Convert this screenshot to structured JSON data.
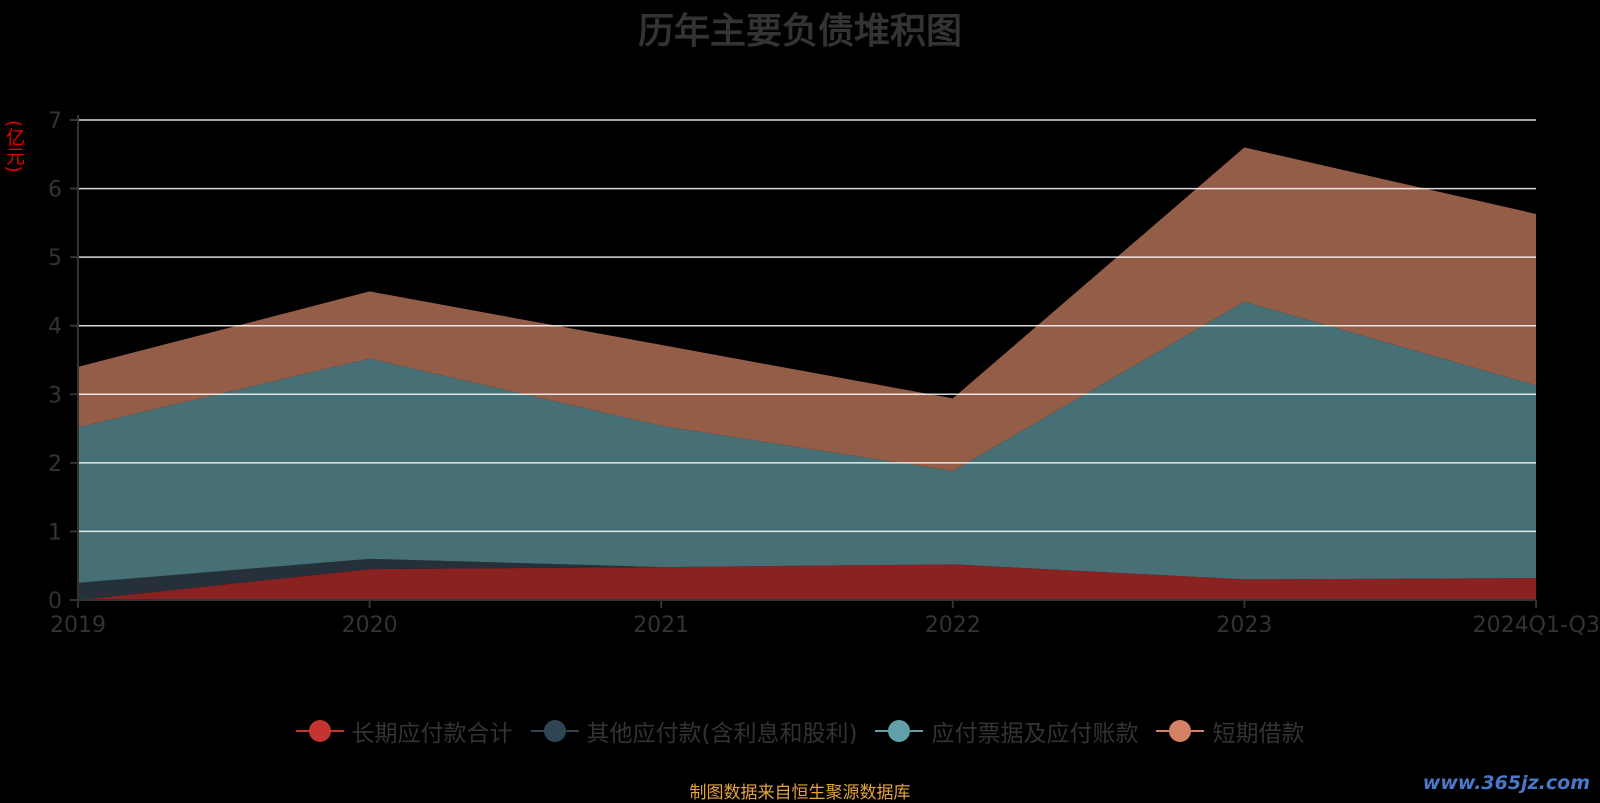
{
  "chart_data": {
    "type": "area",
    "stacked": true,
    "title": "历年主要负债堆积图",
    "unit": "(亿元)",
    "categories": [
      "2019",
      "2020",
      "2021",
      "2022",
      "2023",
      "2024Q1-Q3"
    ],
    "ylim": [
      0,
      7
    ],
    "yticks": [
      "0",
      "1",
      "2",
      "3",
      "4",
      "5",
      "6",
      "7"
    ],
    "grid": true,
    "legend_position": "bottom",
    "series": [
      {
        "name": "长期应付款合计",
        "color": "#c23531",
        "fill": "#8b2222",
        "values": [
          0.0,
          0.45,
          0.48,
          0.52,
          0.3,
          0.32
        ]
      },
      {
        "name": "其他应付款(含利息和股利)",
        "color": "#2f4554",
        "fill": "#25303a",
        "values": [
          0.25,
          0.15,
          0.0,
          0.0,
          0.0,
          0.0
        ]
      },
      {
        "name": "应付票据及应付账款",
        "color": "#61a0a8",
        "fill": "#467076",
        "values": [
          2.27,
          2.92,
          2.06,
          1.36,
          4.05,
          2.81
        ]
      },
      {
        "name": "短期借款",
        "color": "#d48265",
        "fill": "#945d48",
        "values": [
          0.88,
          0.98,
          1.18,
          1.06,
          2.25,
          2.5
        ]
      }
    ]
  },
  "source_text": "制图数据来自恒生聚源数据库",
  "watermark": "www.365jz.com"
}
